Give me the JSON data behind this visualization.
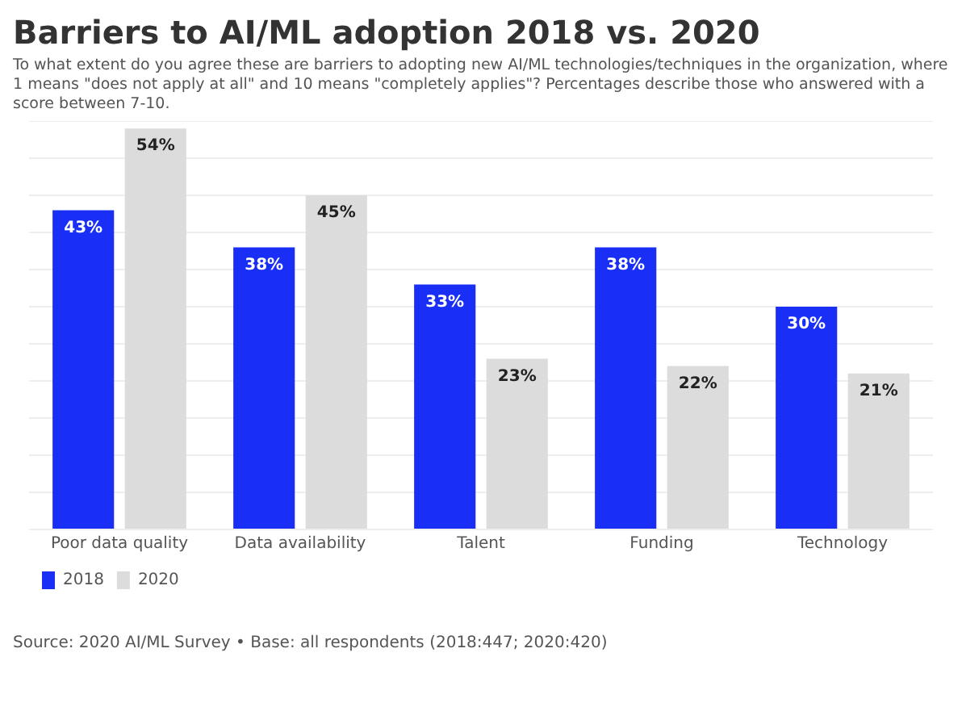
{
  "chart_data": {
    "type": "bar",
    "title": "Barriers to AI/ML adoption 2018 vs. 2020",
    "subtitle": "To what extent do you agree these are barriers to adopting new AI/ML technologies/techniques in the organization, where 1 means \"does not apply at all\" and 10 means \"completely applies\"? Percentages describe those who answered with a score between 7-10.",
    "categories": [
      "Poor data quality",
      "Data availability",
      "Talent",
      "Funding",
      "Technology"
    ],
    "series": [
      {
        "name": "2018",
        "color": "#1a2ff5",
        "values": [
          43,
          38,
          33,
          38,
          30
        ],
        "value_labels": [
          "43%",
          "38%",
          "33%",
          "38%",
          "30%"
        ]
      },
      {
        "name": "2020",
        "color": "#dcdcdc",
        "values": [
          54,
          45,
          23,
          22,
          21
        ],
        "value_labels": [
          "54%",
          "45%",
          "23%",
          "22%",
          "21%"
        ]
      }
    ],
    "ylim": [
      0,
      55
    ],
    "yticks": [
      {
        "value": 0,
        "label": null
      },
      {
        "value": 5,
        "label": null
      },
      {
        "value": 10,
        "label": null
      },
      {
        "value": 15,
        "label": null
      },
      {
        "value": 20,
        "label": null
      },
      {
        "value": 25,
        "label": null
      },
      {
        "value": 30,
        "label": null
      },
      {
        "value": 35,
        "label": null
      },
      {
        "value": 40,
        "label": null
      },
      {
        "value": 45,
        "label": null
      },
      {
        "value": 50,
        "label": null
      },
      {
        "value": 55,
        "label": null
      }
    ],
    "grid": "y",
    "tick_labels": "x",
    "legend": "bottom left",
    "annotations": [
      "Source: 2020 AI/ML Survey • Base: all respondents (2018:447; 2020:420)"
    ]
  }
}
